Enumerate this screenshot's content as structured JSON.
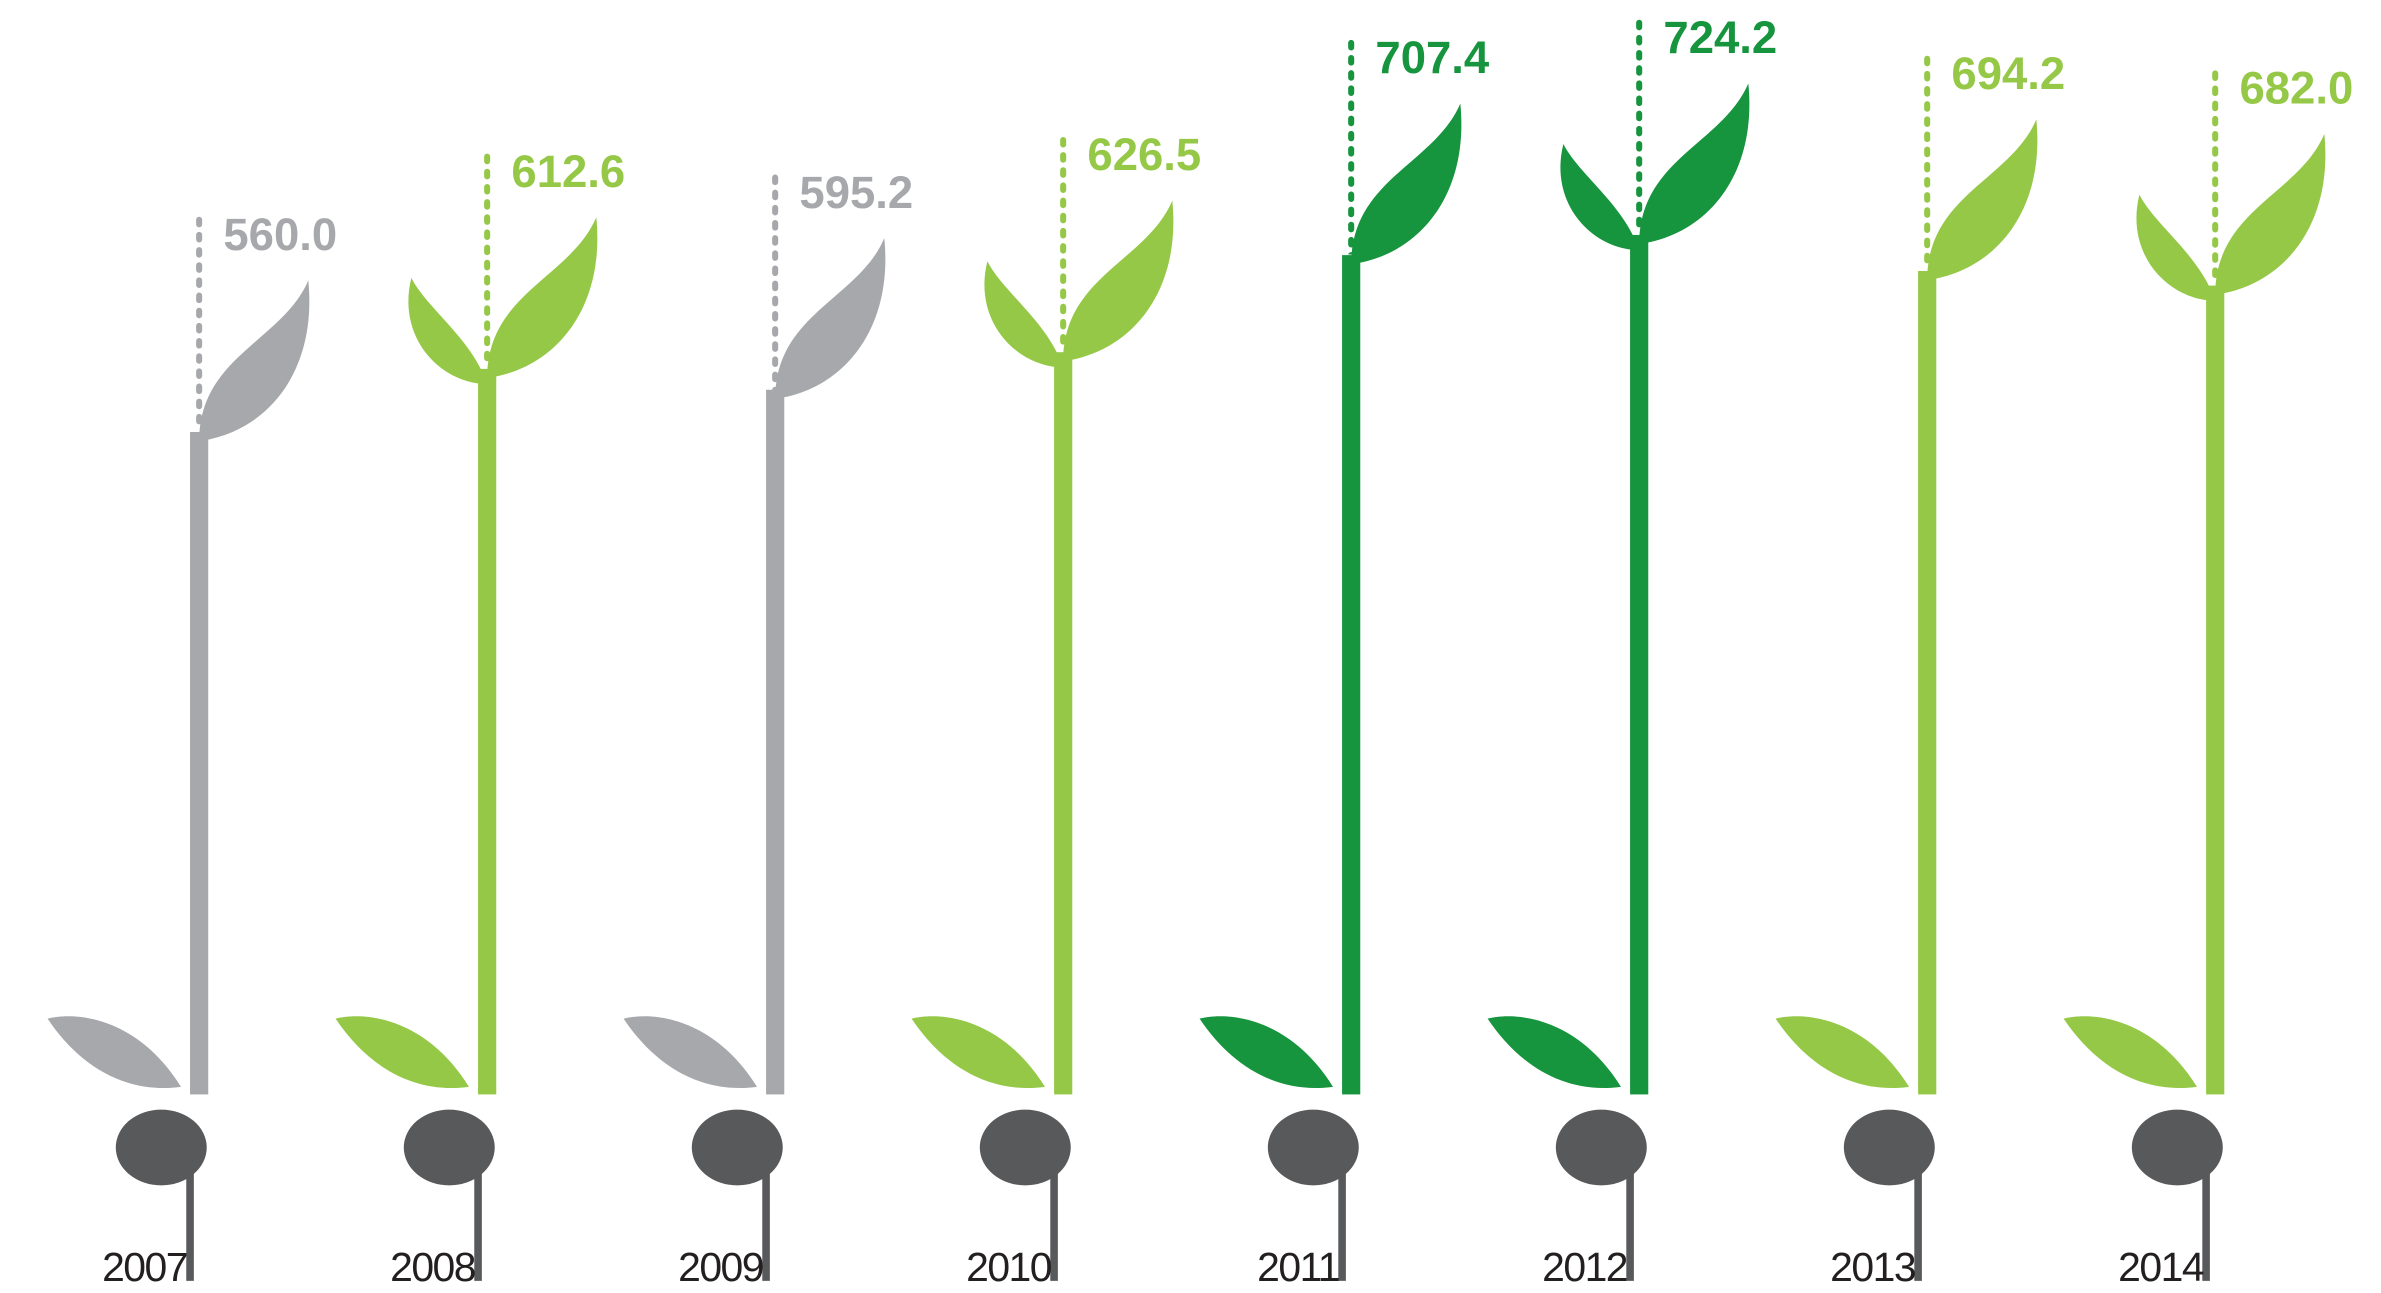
{
  "chart_data": {
    "type": "bar",
    "categories": [
      "2007",
      "2008",
      "2009",
      "2010",
      "2011",
      "2012",
      "2013",
      "2014"
    ],
    "values": [
      560.0,
      612.6,
      595.2,
      626.5,
      707.4,
      724.2,
      694.2,
      682.0
    ],
    "value_labels": [
      "560.0",
      "612.6",
      "595.2",
      "626.5",
      "707.4",
      "724.2",
      "694.2",
      "682.0"
    ],
    "colors": [
      "#a7a8ab",
      "#96c848",
      "#a7a8ab",
      "#96c848",
      "#16943e",
      "#16943e",
      "#96c848",
      "#96c848"
    ]
  }
}
